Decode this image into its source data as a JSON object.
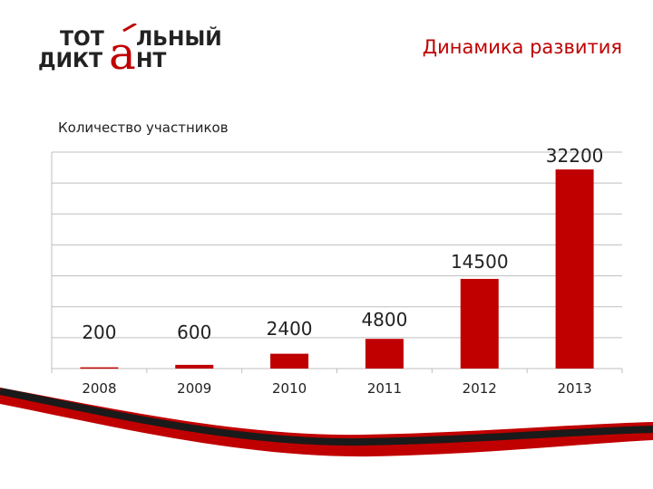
{
  "logo": {
    "line1": "ТОТ",
    "accent": "а",
    "line1_rest": "ЛЬНЫЙ",
    "line2": "ДИКТ",
    "line2_rest": "НТ"
  },
  "slide": {
    "title": "Динамика развития"
  },
  "colors": {
    "accent": "#c00000",
    "bar": "#c00000",
    "grid": "#bfbfbf",
    "text": "#222222"
  },
  "chart_data": {
    "type": "bar",
    "title": "Количество участников",
    "xlabel": "",
    "ylabel": "",
    "categories": [
      "2008",
      "2009",
      "2010",
      "2011",
      "2012",
      "2013"
    ],
    "values": [
      200,
      600,
      2400,
      4800,
      14500,
      32200
    ],
    "data_labels": [
      "200",
      "600",
      "2400",
      "4800",
      "14500",
      "32200"
    ],
    "ylim": [
      0,
      35000
    ],
    "grid": true,
    "legend": "none"
  }
}
